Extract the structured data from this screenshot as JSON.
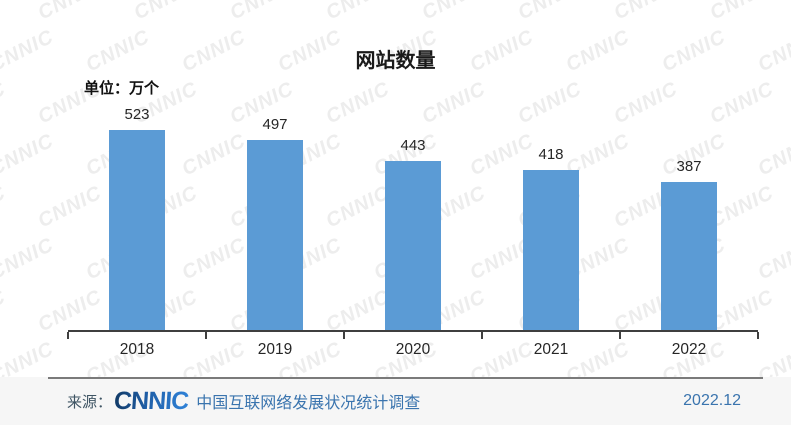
{
  "page": {
    "title": "网站数量",
    "unit_label": "单位：万个"
  },
  "chart_data": {
    "type": "bar",
    "title": "网站数量",
    "unit": "万个",
    "categories": [
      "2018",
      "2019",
      "2020",
      "2021",
      "2022"
    ],
    "values": [
      523,
      497,
      443,
      418,
      387
    ],
    "xlabel": "",
    "ylabel": "单位：万个",
    "ylim": [
      0,
      560
    ],
    "grid": false,
    "legend": "none",
    "bar_color": "#5b9bd5",
    "data_labels_shown": true
  },
  "footer": {
    "source_prefix": "来源：",
    "logo_text": "CNNIC",
    "source_text": "中国互联网络发展状况统计调查",
    "date": "2022.12"
  },
  "watermark": {
    "text": "CNNIC"
  },
  "colors": {
    "bar": "#5b9bd5",
    "axis": "#3f3f3f",
    "footer_blue": "#3a74ae",
    "source_prefix_color": "#3e5463",
    "footer_bg": "#f6f6f6",
    "watermark_gray": "#ededed"
  }
}
